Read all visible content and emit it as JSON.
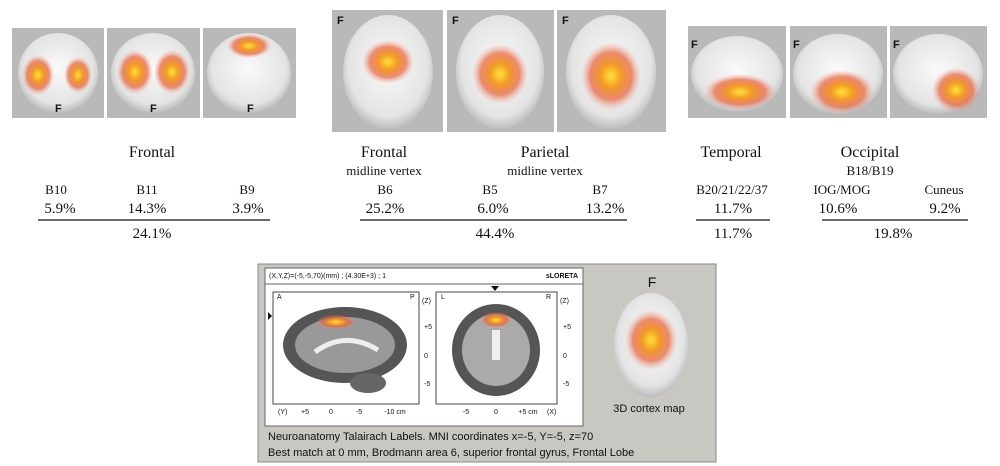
{
  "orientation_marker": "F",
  "groups": [
    {
      "headings": [
        {
          "title": "Frontal"
        }
      ],
      "columns": [
        {
          "label": "B10",
          "value": "5.9%"
        },
        {
          "label": "B11",
          "value": "14.3%"
        },
        {
          "label": "B9",
          "value": "3.9%"
        }
      ],
      "total": "24.1%"
    },
    {
      "headings": [
        {
          "title": "Frontal",
          "subtitle": "midline vertex"
        },
        {
          "title": "Parietal",
          "subtitle": "midline vertex"
        }
      ],
      "columns": [
        {
          "label": "B6",
          "value": "25.2%"
        },
        {
          "label": "B5",
          "value": "6.0%"
        },
        {
          "label": "B7",
          "value": "13.2%"
        }
      ],
      "total": "44.4%"
    },
    {
      "headings": [
        {
          "title": "Temporal"
        }
      ],
      "columns": [
        {
          "label": "B20/21/22/37",
          "value": "11.7%"
        }
      ],
      "total": "11.7%"
    },
    {
      "headings": [
        {
          "title": "Occipital",
          "subtitle": "B18/B19"
        }
      ],
      "columns": [
        {
          "label": "IOG/MOG",
          "value": "10.6%"
        },
        {
          "label": "Cuneus",
          "value": "9.2%"
        }
      ],
      "total": "19.8%"
    }
  ],
  "loreta": {
    "header": "(X,Y,Z)=(-5,-5,70)(mm) ; (4.30E+3) ; 1",
    "method": "sLORETA",
    "sagittal": {
      "front": "A",
      "back": "P",
      "z_axis": "(Z)",
      "z_ticks": [
        "+5",
        "0",
        "-5"
      ],
      "y_axis": "(Y)",
      "y_ticks": [
        "+5",
        "0",
        "-5",
        "-10 cm"
      ]
    },
    "coronal": {
      "left": "L",
      "right": "R",
      "z_axis": "(Z)",
      "z_ticks": [
        "+5",
        "0",
        "-5"
      ],
      "x_axis": "(X)",
      "x_ticks": [
        "-5",
        "0",
        "+5 cm"
      ]
    },
    "cortex_label": "3D cortex map",
    "caption": [
      "Neuroanatomy Talairach Labels. MNI coordinates x=-5, Y=-5, z=70",
      "Best match at 0 mm, Brodmann area 6, superior frontal gyrus, Frontal Lobe"
    ]
  }
}
